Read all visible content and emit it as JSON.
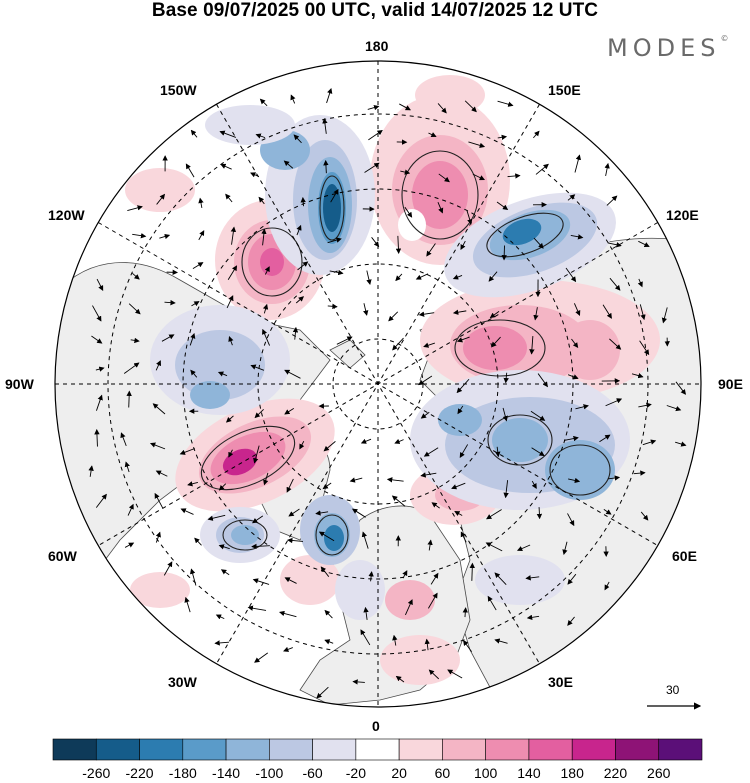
{
  "header": {
    "title": "Base 09/07/2025 00 UTC, valid 14/07/2025 12 UTC",
    "brand": "MODES",
    "brand_mark": "©"
  },
  "map": {
    "projection": "north-polar-stereographic",
    "longitude_labels": {
      "top": "180",
      "top_left": "150W",
      "top_right": "150E",
      "upper_left": "120W",
      "upper_right": "120E",
      "left": "90W",
      "right": "90E",
      "lower_left": "60W",
      "lower_right": "60E",
      "bottom_left": "30W",
      "bottom_right": "30E",
      "bottom": "0"
    },
    "background_color": "#eeeeee",
    "land_coastline_color": "#555555"
  },
  "vector_scale": {
    "value": "30"
  },
  "colorbar": {
    "labels": [
      "-260",
      "-220",
      "-180",
      "-140",
      "-100",
      "-60",
      "-20",
      "20",
      "60",
      "100",
      "140",
      "180",
      "220",
      "260"
    ],
    "colors": [
      "#0e3a59",
      "#155c8a",
      "#2c7cb0",
      "#5a9bc9",
      "#8fb5d9",
      "#bcc8e3",
      "#e1e1ef",
      "#ffffff",
      "#f9d7dc",
      "#f4b5c5",
      "#ee8db0",
      "#e35fa0",
      "#c8258d",
      "#8e1376",
      "#5b0f78"
    ]
  }
}
